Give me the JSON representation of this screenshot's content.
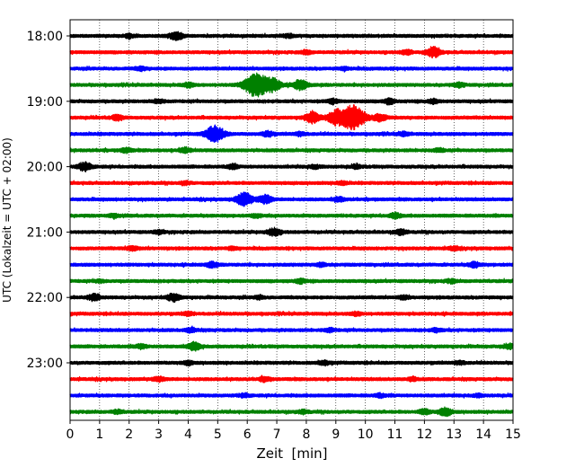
{
  "chart_data": {
    "type": "line",
    "title": "",
    "xlabel": "Zeit  [min]",
    "ylabel": "UTC (Lokalzeit = UTC + 02:00)",
    "xlim": [
      0,
      15
    ],
    "x_ticks": [
      "0",
      "1",
      "2",
      "3",
      "4",
      "5",
      "6",
      "7",
      "8",
      "9",
      "10",
      "11",
      "12",
      "13",
      "14",
      "15"
    ],
    "y_ticks": [
      "18:00",
      "19:00",
      "20:00",
      "21:00",
      "22:00",
      "23:00"
    ],
    "grid": {
      "x": true,
      "style": "dotted"
    },
    "trace_colors": [
      "#000000",
      "#ff0000",
      "#0000ff",
      "#008000"
    ],
    "traces": [
      {
        "start": "18:00",
        "events": [
          [
            3.6,
            1.0
          ],
          [
            2.0,
            0.4
          ],
          [
            7.4,
            0.4
          ]
        ]
      },
      {
        "start": "18:15",
        "events": [
          [
            12.3,
            1.2
          ],
          [
            11.4,
            0.5
          ],
          [
            8.0,
            0.4
          ]
        ]
      },
      {
        "start": "18:30",
        "events": [
          [
            2.4,
            0.4
          ],
          [
            9.3,
            0.3
          ]
        ]
      },
      {
        "start": "18:45",
        "events": [
          [
            6.3,
            3.0
          ],
          [
            6.9,
            1.4
          ],
          [
            7.8,
            1.2
          ],
          [
            4.0,
            0.5
          ],
          [
            13.2,
            0.5
          ]
        ]
      },
      {
        "start": "19:00",
        "events": [
          [
            10.8,
            0.6
          ],
          [
            8.9,
            0.5
          ],
          [
            12.3,
            0.5
          ],
          [
            3.0,
            0.4
          ]
        ]
      },
      {
        "start": "19:15",
        "events": [
          [
            9.6,
            3.0
          ],
          [
            9.0,
            1.7
          ],
          [
            8.2,
            1.3
          ],
          [
            10.5,
            0.9
          ],
          [
            1.6,
            0.6
          ]
        ]
      },
      {
        "start": "19:30",
        "events": [
          [
            4.9,
            2.0
          ],
          [
            6.7,
            0.6
          ],
          [
            7.8,
            0.4
          ],
          [
            11.3,
            0.4
          ]
        ]
      },
      {
        "start": "19:45",
        "events": [
          [
            3.9,
            0.6
          ],
          [
            1.9,
            0.5
          ],
          [
            12.5,
            0.4
          ]
        ]
      },
      {
        "start": "20:00",
        "events": [
          [
            0.5,
            1.0
          ],
          [
            5.5,
            0.5
          ],
          [
            9.7,
            0.4
          ],
          [
            8.3,
            0.4
          ]
        ]
      },
      {
        "start": "20:15",
        "events": [
          [
            3.9,
            0.4
          ],
          [
            9.2,
            0.4
          ]
        ]
      },
      {
        "start": "20:30",
        "events": [
          [
            5.9,
            1.6
          ],
          [
            6.6,
            1.0
          ],
          [
            9.1,
            0.5
          ]
        ]
      },
      {
        "start": "20:45",
        "events": [
          [
            11.0,
            0.6
          ],
          [
            1.5,
            0.4
          ],
          [
            6.3,
            0.4
          ]
        ]
      },
      {
        "start": "21:00",
        "events": [
          [
            6.9,
            0.9
          ],
          [
            11.2,
            0.6
          ],
          [
            3.0,
            0.4
          ]
        ]
      },
      {
        "start": "21:15",
        "events": [
          [
            2.1,
            0.5
          ],
          [
            13.0,
            0.4
          ],
          [
            5.5,
            0.3
          ]
        ]
      },
      {
        "start": "21:30",
        "events": [
          [
            4.8,
            0.6
          ],
          [
            13.7,
            0.6
          ],
          [
            8.5,
            0.4
          ]
        ]
      },
      {
        "start": "21:45",
        "events": [
          [
            7.8,
            0.5
          ],
          [
            12.9,
            0.4
          ],
          [
            1.0,
            0.3
          ]
        ]
      },
      {
        "start": "22:00",
        "events": [
          [
            3.5,
            0.9
          ],
          [
            0.8,
            0.8
          ],
          [
            6.4,
            0.4
          ],
          [
            11.3,
            0.4
          ]
        ]
      },
      {
        "start": "22:15",
        "events": [
          [
            9.7,
            0.4
          ],
          [
            4.0,
            0.4
          ]
        ]
      },
      {
        "start": "22:30",
        "events": [
          [
            4.1,
            0.5
          ],
          [
            8.8,
            0.4
          ],
          [
            12.4,
            0.4
          ]
        ]
      },
      {
        "start": "22:45",
        "events": [
          [
            4.2,
            0.9
          ],
          [
            2.4,
            0.5
          ],
          [
            14.9,
            0.5
          ]
        ]
      },
      {
        "start": "23:00",
        "events": [
          [
            4.0,
            0.4
          ],
          [
            8.6,
            0.5
          ],
          [
            13.2,
            0.4
          ]
        ]
      },
      {
        "start": "23:15",
        "events": [
          [
            3.0,
            0.5
          ],
          [
            6.6,
            0.5
          ],
          [
            11.6,
            0.4
          ]
        ]
      },
      {
        "start": "23:30",
        "events": [
          [
            5.9,
            0.4
          ],
          [
            10.5,
            0.4
          ],
          [
            13.8,
            0.3
          ]
        ]
      },
      {
        "start": "23:45",
        "events": [
          [
            12.7,
            0.9
          ],
          [
            12.0,
            0.6
          ],
          [
            1.6,
            0.4
          ],
          [
            7.9,
            0.4
          ]
        ]
      }
    ]
  }
}
